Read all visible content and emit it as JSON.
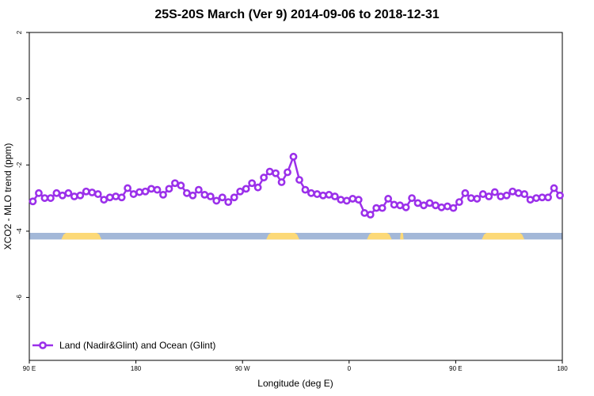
{
  "chart_data": {
    "type": "line",
    "title": "25S-20S March (Ver 9)   2014-09-06 to 2018-12-31",
    "xlabel": "Longitude (deg E)",
    "ylabel": "XCO2 - MLO trend (ppm)",
    "ylim": [
      -7.9,
      2.0
    ],
    "xlim": [
      90,
      540
    ],
    "x_ticks": [
      {
        "value": 90,
        "label": "90 E"
      },
      {
        "value": 180,
        "label": "180"
      },
      {
        "value": 270,
        "label": "90 W"
      },
      {
        "value": 360,
        "label": "0"
      },
      {
        "value": 450,
        "label": "90 E"
      },
      {
        "value": 540,
        "label": "180"
      }
    ],
    "y_ticks": [
      {
        "value": 2,
        "label": "2"
      },
      {
        "value": 0,
        "label": "0"
      },
      {
        "value": -2,
        "label": "-2"
      },
      {
        "value": -4,
        "label": "-4"
      },
      {
        "value": -6,
        "label": "-6"
      }
    ],
    "grid": false,
    "legend_position": "bottom-left",
    "surface_band": {
      "y_top": -4.05,
      "y_bottom": -4.25,
      "ocean_color": "#a3b8d8",
      "land_color": "#fcd977",
      "land_segments": [
        [
          117,
          151
        ],
        [
          290,
          318
        ],
        [
          375,
          396
        ],
        [
          403,
          406
        ],
        [
          472,
          508
        ]
      ]
    },
    "series": [
      {
        "name": "Land (Nadir&Glint) and Ocean (Glint)",
        "color": "#9b30ea",
        "x": [
          93,
          98,
          103,
          108,
          113,
          118,
          123,
          128,
          133,
          138,
          143,
          148,
          153,
          158,
          163,
          168,
          173,
          178,
          183,
          188,
          193,
          198,
          203,
          208,
          213,
          218,
          223,
          228,
          233,
          238,
          243,
          248,
          253,
          258,
          263,
          268,
          273,
          278,
          283,
          288,
          293,
          298,
          303,
          308,
          313,
          318,
          323,
          328,
          333,
          338,
          343,
          348,
          353,
          358,
          363,
          368,
          373,
          378,
          383,
          388,
          393,
          398,
          403,
          408,
          413,
          418,
          423,
          428,
          433,
          438,
          443,
          448,
          453,
          458,
          463,
          468,
          473,
          478,
          483,
          488,
          493,
          498,
          503,
          508,
          513,
          518,
          523,
          528,
          533,
          538
        ],
        "values": [
          -3.1,
          -2.85,
          -3.0,
          -3.0,
          -2.85,
          -2.92,
          -2.85,
          -2.95,
          -2.92,
          -2.8,
          -2.83,
          -2.88,
          -3.05,
          -2.98,
          -2.95,
          -2.98,
          -2.7,
          -2.88,
          -2.82,
          -2.8,
          -2.72,
          -2.75,
          -2.9,
          -2.72,
          -2.55,
          -2.62,
          -2.85,
          -2.92,
          -2.75,
          -2.9,
          -2.95,
          -3.08,
          -2.98,
          -3.12,
          -2.98,
          -2.8,
          -2.72,
          -2.55,
          -2.68,
          -2.38,
          -2.2,
          -2.25,
          -2.52,
          -2.22,
          -1.75,
          -2.45,
          -2.75,
          -2.85,
          -2.88,
          -2.92,
          -2.9,
          -2.95,
          -3.05,
          -3.08,
          -3.02,
          -3.05,
          -3.45,
          -3.5,
          -3.3,
          -3.3,
          -3.02,
          -3.2,
          -3.22,
          -3.28,
          -3.0,
          -3.15,
          -3.22,
          -3.15,
          -3.22,
          -3.28,
          -3.25,
          -3.3,
          -3.12,
          -2.85,
          -3.0,
          -3.02,
          -2.88,
          -2.95,
          -2.82,
          -2.95,
          -2.92,
          -2.8,
          -2.85,
          -2.88,
          -3.05,
          -3.0,
          -2.98,
          -2.98,
          -2.7,
          -2.92
        ]
      }
    ]
  }
}
